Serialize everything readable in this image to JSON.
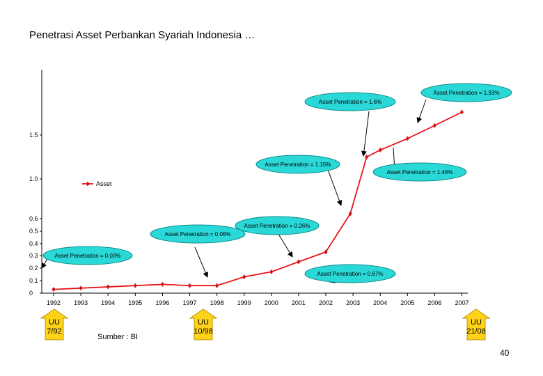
{
  "slide": {
    "title": "Penetrasi Asset Perbankan Syariah Indonesia …",
    "source": "Sumber : BI",
    "page_number": "40"
  },
  "colors": {
    "line": "#e8141a",
    "marker": "#d0121a",
    "callout_fill": "#2ad8d8",
    "callout_edge": "#0e8a8a",
    "arrow_fill": "#ffd21a"
  },
  "chart_data": {
    "type": "line",
    "legend": {
      "label": "Asset",
      "placement": "left-middle"
    },
    "x": [
      "1992",
      "1993",
      "1994",
      "1995",
      "1996",
      "1997",
      "1998",
      "1999",
      "2000",
      "2001",
      "2002",
      "2003",
      "2004",
      "2005",
      "2006",
      "2007"
    ],
    "y_ticks": [
      "0",
      "0.1",
      "0.2",
      "0.3",
      "0.4",
      "0.5",
      "0.6",
      "1.0",
      "1.5"
    ],
    "series": [
      {
        "name": "Asset",
        "points": [
          {
            "x": "1992",
            "y": 0.03
          },
          {
            "x": "1993",
            "y": 0.04
          },
          {
            "x": "1994",
            "y": 0.05
          },
          {
            "x": "1995",
            "y": 0.06
          },
          {
            "x": "1996",
            "y": 0.07
          },
          {
            "x": "1997",
            "y": 0.06
          },
          {
            "x": "1998",
            "y": 0.06
          },
          {
            "x": "1999",
            "y": 0.13
          },
          {
            "x": "2000",
            "y": 0.17
          },
          {
            "x": "2001",
            "y": 0.25
          },
          {
            "x": "2002",
            "y": 0.33
          },
          {
            "x": "2002.9",
            "y": 0.65
          },
          {
            "x": "2003.5",
            "y": 1.25
          },
          {
            "x": "2004",
            "y": 1.33
          },
          {
            "x": "2005",
            "y": 1.46
          },
          {
            "x": "2006",
            "y": 1.6
          },
          {
            "x": "2007",
            "y": 1.74
          }
        ]
      }
    ],
    "annotations": [
      {
        "text": "Asset Penetration = 1.93%"
      },
      {
        "text": "Asset Penetration = 1.6%"
      },
      {
        "text": "Asset Penetration = 1.15%"
      },
      {
        "text": "Asset Penetration = 1.46%"
      },
      {
        "text": "Asset Penetration = 0.26%"
      },
      {
        "text": "Asset Penetration = 0.06%"
      },
      {
        "text": "Asset Penetration = 0.03%"
      },
      {
        "text": "Asset Penetration = 0.67%"
      }
    ],
    "law_markers": [
      {
        "line1": "UU",
        "line2": "7/92"
      },
      {
        "line1": "UU",
        "line2": "10/98"
      },
      {
        "line1": "UU",
        "line2": "21/08"
      }
    ]
  }
}
